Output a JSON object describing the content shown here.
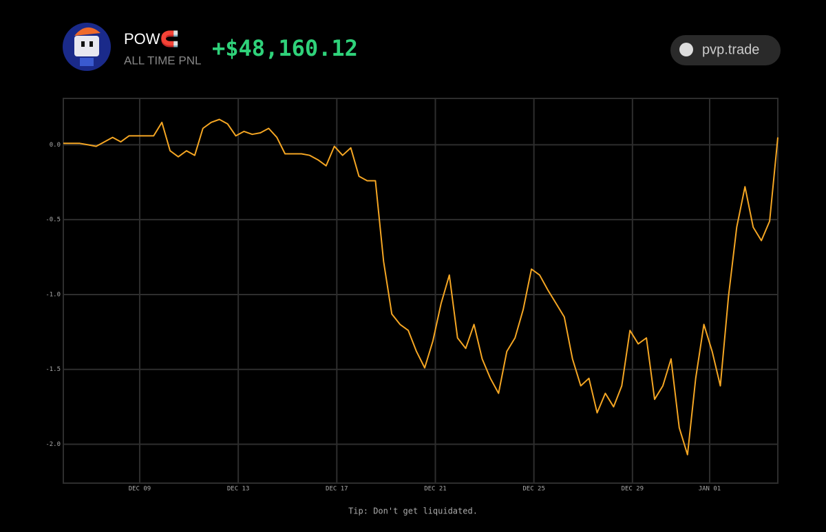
{
  "header": {
    "name": "POW🧲",
    "label": "ALL TIME PNL",
    "pnl": "+$48,160.12"
  },
  "badge": {
    "text": "pvp.trade"
  },
  "chart_data": {
    "type": "line",
    "color": "#f5a623",
    "grid": true,
    "values": [
      0.01,
      0.01,
      0.01,
      0.0,
      -0.01,
      0.02,
      0.05,
      0.02,
      0.06,
      0.06,
      0.06,
      0.06,
      0.15,
      -0.04,
      -0.08,
      -0.04,
      -0.07,
      0.11,
      0.15,
      0.17,
      0.14,
      0.06,
      0.09,
      0.07,
      0.08,
      0.11,
      0.05,
      -0.06,
      -0.06,
      -0.06,
      -0.07,
      -0.1,
      -0.14,
      -0.01,
      -0.07,
      -0.02,
      -0.21,
      -0.24,
      -0.24,
      -0.78,
      -1.13,
      -1.2,
      -1.24,
      -1.38,
      -1.49,
      -1.31,
      -1.06,
      -0.87,
      -1.29,
      -1.36,
      -1.2,
      -1.43,
      -1.56,
      -1.66,
      -1.38,
      -1.29,
      -1.1,
      -0.83,
      -0.87,
      -0.97,
      -1.06,
      -1.15,
      -1.43,
      -1.61,
      -1.56,
      -1.79,
      -1.66,
      -1.75,
      -1.61,
      -1.24,
      -1.33,
      -1.29,
      -1.7,
      -1.61,
      -1.43,
      -1.89,
      -2.07,
      -1.56,
      -1.2,
      -1.38,
      -1.61,
      -1.01,
      -0.55,
      -0.28,
      -0.55,
      -0.64,
      -0.51,
      0.05
    ],
    "xlim": [
      0,
      87
    ],
    "xticks": [
      {
        "value": 9.3,
        "label": "DEC 09"
      },
      {
        "value": 21.3,
        "label": "DEC 13"
      },
      {
        "value": 33.3,
        "label": "DEC 17"
      },
      {
        "value": 45.3,
        "label": "DEC 21"
      },
      {
        "value": 57.3,
        "label": "DEC 25"
      },
      {
        "value": 69.3,
        "label": "DEC 29"
      },
      {
        "value": 78.7,
        "label": "JAN 01"
      }
    ],
    "ylim": [
      -2.26,
      0.31
    ],
    "yticks": [
      {
        "value": 0,
        "label": "0.0"
      },
      -0.5,
      {
        "value": -1,
        "label": "-1.0"
      },
      -1.5,
      {
        "value": -2,
        "label": "-2.0"
      }
    ]
  },
  "footer": {
    "tip": "Tip: Don't get liquidated."
  }
}
